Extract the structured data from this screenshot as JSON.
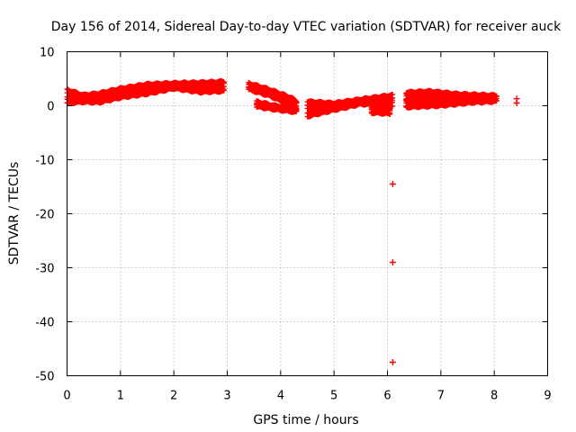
{
  "chart_data": {
    "type": "scatter",
    "title": "Day 156 of 2014, Sidereal Day-to-day VTEC variation (SDTVAR) for receiver auck",
    "xlabel": "GPS time / hours",
    "ylabel": "SDTVAR / TECUs",
    "xlim": [
      0,
      9
    ],
    "ylim": [
      -50,
      10
    ],
    "xticks": [
      "0",
      "1",
      "2",
      "3",
      "4",
      "5",
      "6",
      "7",
      "8",
      "9"
    ],
    "yticks": [
      "10",
      "0",
      "-10",
      "-20",
      "-30",
      "-40",
      "-50"
    ],
    "grid": true,
    "marker": "+",
    "color": "#ff0000",
    "band_segments": [
      {
        "x": [
          0.0,
          0.3,
          0.6,
          1.0,
          1.5,
          2.0,
          2.5,
          2.95
        ],
        "lo": [
          0.5,
          0.7,
          0.6,
          1.5,
          2.2,
          3.2,
          2.5,
          2.7
        ],
        "hi": [
          3.0,
          2.0,
          2.3,
          3.2,
          4.0,
          4.2,
          4.3,
          4.5
        ]
      },
      {
        "x": [
          3.4,
          3.8,
          4.2,
          4.3
        ],
        "lo": [
          3.0,
          1.8,
          0.0,
          -1.0
        ],
        "hi": [
          4.2,
          3.0,
          1.5,
          0.8
        ]
      },
      {
        "x": [
          3.55,
          3.9,
          4.3
        ],
        "lo": [
          -0.2,
          -0.7,
          -1.2
        ],
        "hi": [
          0.8,
          0.0,
          -0.4
        ]
      },
      {
        "x": [
          4.5,
          5.0,
          5.5,
          6.1
        ],
        "lo": [
          -2.0,
          -0.8,
          0.3,
          0.0
        ],
        "hi": [
          0.8,
          0.5,
          1.2,
          2.0
        ]
      },
      {
        "x": [
          5.7,
          6.05
        ],
        "lo": [
          -1.3,
          -1.5
        ],
        "hi": [
          -0.3,
          -0.6
        ]
      },
      {
        "x": [
          6.35,
          6.8,
          7.3,
          8.05
        ],
        "lo": [
          1.0,
          1.7,
          1.0,
          0.8
        ],
        "hi": [
          2.5,
          2.7,
          2.2,
          1.9
        ]
      },
      {
        "x": [
          6.35,
          7.0,
          7.6,
          8.05
        ],
        "lo": [
          -0.3,
          0.0,
          0.6,
          0.8
        ],
        "hi": [
          1.2,
          1.2,
          1.5,
          1.9
        ]
      }
    ],
    "outliers": [
      {
        "x": 6.1,
        "y": -14.5
      },
      {
        "x": 6.1,
        "y": -29.0
      },
      {
        "x": 6.1,
        "y": -47.5
      },
      {
        "x": 8.42,
        "y": 1.3
      },
      {
        "x": 8.42,
        "y": 0.5
      }
    ]
  }
}
